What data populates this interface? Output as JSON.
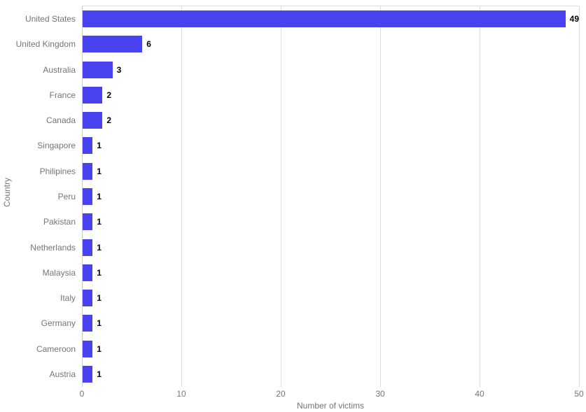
{
  "chart_data": {
    "type": "bar",
    "orientation": "horizontal",
    "title": "",
    "xlabel": "Number of victims",
    "ylabel": "Country",
    "categories": [
      "United States",
      "United Kingdom",
      "Australia",
      "France",
      "Canada",
      "Singapore",
      "Philipines",
      "Peru",
      "Pakistan",
      "Netherlands",
      "Malaysia",
      "Italy",
      "Germany",
      "Cameroon",
      "Austria"
    ],
    "values": [
      49,
      6,
      3,
      2,
      2,
      1,
      1,
      1,
      1,
      1,
      1,
      1,
      1,
      1,
      1
    ],
    "xlim": [
      0,
      50
    ],
    "xticks": [
      0,
      10,
      20,
      30,
      40,
      50
    ],
    "grid": "vertical-only",
    "legend": "none",
    "colors": {
      "bar": "#4843EE",
      "value_label": "#000000",
      "axis_text": "#757575",
      "gridline": "#dddddd"
    }
  }
}
